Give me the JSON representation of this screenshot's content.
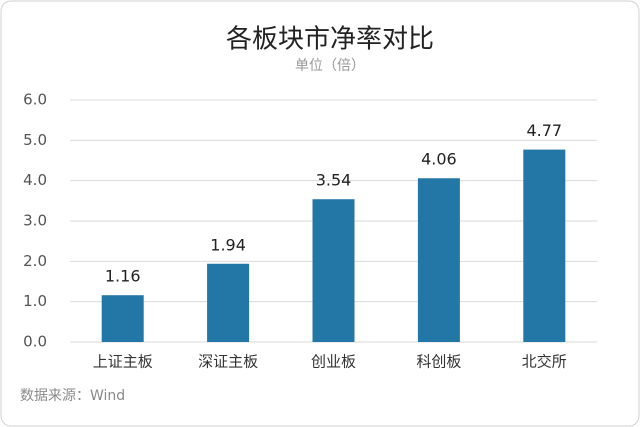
{
  "chart_data": {
    "type": "bar",
    "title": "各板块市净率对比",
    "subtitle": "单位（倍）",
    "categories": [
      "上证主板",
      "深证主板",
      "创业板",
      "科创板",
      "北交所"
    ],
    "values": [
      1.16,
      1.94,
      3.54,
      4.06,
      4.77
    ],
    "color": "#2377a6",
    "ylim": [
      0,
      6
    ],
    "yticks": [
      {
        "value": 0,
        "label": "0.0"
      },
      {
        "value": 1,
        "label": "1.0"
      },
      {
        "value": 2,
        "label": "2.0"
      },
      {
        "value": 3,
        "label": "3.0"
      },
      {
        "value": 4,
        "label": "4.0"
      },
      {
        "value": 5,
        "label": "5.0"
      },
      {
        "value": 6,
        "label": "6.0"
      }
    ],
    "grid": true,
    "source": "数据来源：Wind"
  }
}
